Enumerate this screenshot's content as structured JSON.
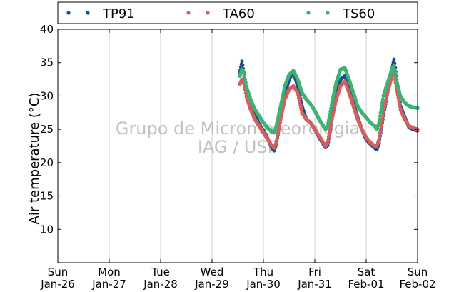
{
  "chart_data": {
    "type": "scatter",
    "title": "",
    "xlabel": "",
    "ylabel": "Air temperature (°C)",
    "ylim": [
      5,
      40
    ],
    "yticks": [
      10,
      15,
      20,
      25,
      30,
      35,
      40
    ],
    "xlim": [
      "2014-01-26",
      "2014-02-02"
    ],
    "xticks": [
      {
        "date": "2014-01-26",
        "day": "Sun",
        "label": "Jan-26"
      },
      {
        "date": "2014-01-27",
        "day": "Mon",
        "label": "Jan-27"
      },
      {
        "date": "2014-01-28",
        "day": "Tue",
        "label": "Jan-28"
      },
      {
        "date": "2014-01-29",
        "day": "Wed",
        "label": "Jan-29"
      },
      {
        "date": "2014-01-30",
        "day": "Thu",
        "label": "Jan-30"
      },
      {
        "date": "2014-01-31",
        "day": "Fri",
        "label": "Jan-31"
      },
      {
        "date": "2014-02-01",
        "day": "Sat",
        "label": "Feb-01"
      },
      {
        "date": "2014-02-02",
        "day": "Sun",
        "label": "Feb-02"
      }
    ],
    "grid": "vertical",
    "legend_position": "top",
    "watermark": [
      "Grupo de Micrometeorologia",
      "IAG / USP"
    ],
    "series": [
      {
        "name": "TP91",
        "color": "#1f4e8c",
        "points": [
          [
            "2014-01-29 13:00",
            33.5
          ],
          [
            "2014-01-29 14:00",
            35.2
          ],
          [
            "2014-01-29 15:00",
            33.0
          ],
          [
            "2014-01-29 16:00",
            31.0
          ],
          [
            "2014-01-29 18:00",
            29.0
          ],
          [
            "2014-01-29 20:00",
            27.2
          ],
          [
            "2014-01-29 22:00",
            25.8
          ],
          [
            "2014-01-30 00:00",
            24.8
          ],
          [
            "2014-01-30 02:00",
            23.6
          ],
          [
            "2014-01-30 04:00",
            22.2
          ],
          [
            "2014-01-30 05:00",
            21.8
          ],
          [
            "2014-01-30 06:00",
            22.8
          ],
          [
            "2014-01-30 08:00",
            26.5
          ],
          [
            "2014-01-30 10:00",
            30.0
          ],
          [
            "2014-01-30 12:00",
            32.5
          ],
          [
            "2014-01-30 14:00",
            33.6
          ],
          [
            "2014-01-30 16:00",
            31.5
          ],
          [
            "2014-01-30 18:00",
            28.5
          ],
          [
            "2014-01-30 20:00",
            26.5
          ],
          [
            "2014-01-30 22:00",
            26.0
          ],
          [
            "2014-01-31 00:00",
            25.0
          ],
          [
            "2014-01-31 02:00",
            23.8
          ],
          [
            "2014-01-31 04:00",
            22.8
          ],
          [
            "2014-01-31 05:00",
            22.3
          ],
          [
            "2014-01-31 06:00",
            22.6
          ],
          [
            "2014-01-31 08:00",
            26.5
          ],
          [
            "2014-01-31 10:00",
            30.0
          ],
          [
            "2014-01-31 12:00",
            32.5
          ],
          [
            "2014-01-31 14:00",
            33.0
          ],
          [
            "2014-01-31 16:00",
            31.5
          ],
          [
            "2014-01-31 18:00",
            29.0
          ],
          [
            "2014-01-31 20:00",
            26.8
          ],
          [
            "2014-01-31 22:00",
            25.0
          ],
          [
            "2014-02-01 00:00",
            23.5
          ],
          [
            "2014-02-01 02:00",
            22.8
          ],
          [
            "2014-02-01 04:00",
            22.2
          ],
          [
            "2014-02-01 05:00",
            22.0
          ],
          [
            "2014-02-01 06:00",
            23.0
          ],
          [
            "2014-02-01 08:00",
            27.0
          ],
          [
            "2014-02-01 10:00",
            30.5
          ],
          [
            "2014-02-01 12:00",
            34.0
          ],
          [
            "2014-02-01 13:00",
            35.5
          ],
          [
            "2014-02-01 14:00",
            33.0
          ],
          [
            "2014-02-01 16:00",
            28.5
          ],
          [
            "2014-02-01 18:00",
            26.8
          ],
          [
            "2014-02-01 20:00",
            25.3
          ],
          [
            "2014-02-01 22:00",
            25.0
          ],
          [
            "2014-02-02 00:00",
            24.8
          ]
        ]
      },
      {
        "name": "TA60",
        "color": "#d45f5f",
        "points": [
          [
            "2014-01-29 13:00",
            31.8
          ],
          [
            "2014-01-29 14:00",
            32.5
          ],
          [
            "2014-01-29 15:00",
            31.8
          ],
          [
            "2014-01-29 16:00",
            30.0
          ],
          [
            "2014-01-29 18:00",
            28.0
          ],
          [
            "2014-01-29 20:00",
            26.5
          ],
          [
            "2014-01-29 22:00",
            25.5
          ],
          [
            "2014-01-30 00:00",
            24.5
          ],
          [
            "2014-01-30 02:00",
            23.5
          ],
          [
            "2014-01-30 04:00",
            22.5
          ],
          [
            "2014-01-30 05:00",
            22.2
          ],
          [
            "2014-01-30 06:00",
            23.0
          ],
          [
            "2014-01-30 08:00",
            26.5
          ],
          [
            "2014-01-30 10:00",
            29.5
          ],
          [
            "2014-01-30 12:00",
            31.0
          ],
          [
            "2014-01-30 14:00",
            31.5
          ],
          [
            "2014-01-30 16:00",
            30.5
          ],
          [
            "2014-01-30 18:00",
            27.5
          ],
          [
            "2014-01-30 20:00",
            26.5
          ],
          [
            "2014-01-30 22:00",
            26.0
          ],
          [
            "2014-01-31 00:00",
            25.0
          ],
          [
            "2014-01-31 02:00",
            24.0
          ],
          [
            "2014-01-31 04:00",
            23.0
          ],
          [
            "2014-01-31 05:00",
            22.5
          ],
          [
            "2014-01-31 06:00",
            23.0
          ],
          [
            "2014-01-31 08:00",
            26.5
          ],
          [
            "2014-01-31 10:00",
            29.5
          ],
          [
            "2014-01-31 12:00",
            31.5
          ],
          [
            "2014-01-31 14:00",
            32.2
          ],
          [
            "2014-01-31 16:00",
            30.5
          ],
          [
            "2014-01-31 18:00",
            28.5
          ],
          [
            "2014-01-31 20:00",
            26.5
          ],
          [
            "2014-01-31 22:00",
            25.0
          ],
          [
            "2014-02-01 00:00",
            23.8
          ],
          [
            "2014-02-01 02:00",
            23.0
          ],
          [
            "2014-02-01 04:00",
            22.5
          ],
          [
            "2014-02-01 05:00",
            22.5
          ],
          [
            "2014-02-01 06:00",
            23.5
          ],
          [
            "2014-02-01 08:00",
            27.5
          ],
          [
            "2014-02-01 10:00",
            30.5
          ],
          [
            "2014-02-01 12:00",
            33.0
          ],
          [
            "2014-02-01 13:00",
            33.5
          ],
          [
            "2014-02-01 14:00",
            31.5
          ],
          [
            "2014-02-01 16:00",
            28.0
          ],
          [
            "2014-02-01 18:00",
            26.5
          ],
          [
            "2014-02-01 20:00",
            25.5
          ],
          [
            "2014-02-01 22:00",
            25.2
          ],
          [
            "2014-02-02 00:00",
            25.0
          ]
        ]
      },
      {
        "name": "TS60",
        "color": "#3cb371",
        "points": [
          [
            "2014-01-29 13:00",
            33.0
          ],
          [
            "2014-01-29 14:00",
            34.0
          ],
          [
            "2014-01-29 15:00",
            33.5
          ],
          [
            "2014-01-29 16:00",
            31.5
          ],
          [
            "2014-01-29 18:00",
            29.5
          ],
          [
            "2014-01-29 20:00",
            28.0
          ],
          [
            "2014-01-29 22:00",
            27.0
          ],
          [
            "2014-01-30 00:00",
            26.0
          ],
          [
            "2014-01-30 02:00",
            25.2
          ],
          [
            "2014-01-30 04:00",
            24.6
          ],
          [
            "2014-01-30 05:00",
            24.5
          ],
          [
            "2014-01-30 06:00",
            25.5
          ],
          [
            "2014-01-30 08:00",
            28.5
          ],
          [
            "2014-01-30 10:00",
            31.5
          ],
          [
            "2014-01-30 12:00",
            33.2
          ],
          [
            "2014-01-30 14:00",
            33.8
          ],
          [
            "2014-01-30 16:00",
            32.5
          ],
          [
            "2014-01-30 18:00",
            30.5
          ],
          [
            "2014-01-30 20:00",
            29.5
          ],
          [
            "2014-01-30 22:00",
            28.8
          ],
          [
            "2014-01-31 00:00",
            27.8
          ],
          [
            "2014-01-31 02:00",
            26.5
          ],
          [
            "2014-01-31 04:00",
            25.5
          ],
          [
            "2014-01-31 05:00",
            25.0
          ],
          [
            "2014-01-31 06:00",
            25.5
          ],
          [
            "2014-01-31 08:00",
            29.0
          ],
          [
            "2014-01-31 10:00",
            32.0
          ],
          [
            "2014-01-31 12:00",
            34.0
          ],
          [
            "2014-01-31 14:00",
            34.2
          ],
          [
            "2014-01-31 16:00",
            32.5
          ],
          [
            "2014-01-31 18:00",
            30.5
          ],
          [
            "2014-01-31 20:00",
            28.5
          ],
          [
            "2014-01-31 22:00",
            27.5
          ],
          [
            "2014-02-01 00:00",
            26.8
          ],
          [
            "2014-02-01 02:00",
            26.0
          ],
          [
            "2014-02-01 04:00",
            25.5
          ],
          [
            "2014-02-01 05:00",
            25.0
          ],
          [
            "2014-02-01 06:00",
            26.0
          ],
          [
            "2014-02-01 08:00",
            30.0
          ],
          [
            "2014-02-01 10:00",
            32.0
          ],
          [
            "2014-02-01 12:00",
            34.0
          ],
          [
            "2014-02-01 13:00",
            34.5
          ],
          [
            "2014-02-01 14:00",
            32.5
          ],
          [
            "2014-02-01 16:00",
            30.0
          ],
          [
            "2014-02-01 18:00",
            29.0
          ],
          [
            "2014-02-01 20:00",
            28.5
          ],
          [
            "2014-02-01 22:00",
            28.3
          ],
          [
            "2014-02-02 00:00",
            28.2
          ]
        ]
      }
    ]
  }
}
